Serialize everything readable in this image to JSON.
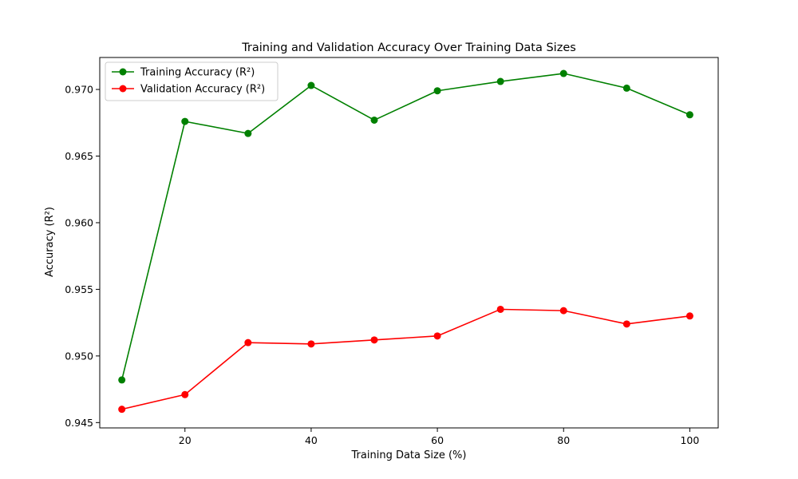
{
  "chart_data": {
    "type": "line",
    "title": "Training and Validation Accuracy Over Training Data Sizes",
    "xlabel": "Training Data Size (%)",
    "ylabel": "Accuracy (R²)",
    "x": [
      10,
      20,
      30,
      40,
      50,
      60,
      70,
      80,
      90,
      100
    ],
    "xlim": [
      6.5,
      104.5
    ],
    "ylim": [
      0.9446,
      0.9724
    ],
    "xticks": [
      20,
      40,
      60,
      80,
      100
    ],
    "yticks": [
      0.945,
      0.95,
      0.955,
      0.96,
      0.965,
      0.97
    ],
    "ytick_labels": [
      "0.945",
      "0.950",
      "0.955",
      "0.960",
      "0.965",
      "0.970"
    ],
    "grid": false,
    "legend_position": "top-left",
    "series": [
      {
        "name": "Training Accuracy (R²)",
        "color": "#008000",
        "marker": "circle",
        "values": [
          0.9482,
          0.9676,
          0.9667,
          0.9703,
          0.9677,
          0.9699,
          0.9706,
          0.9712,
          0.9701,
          0.9681
        ]
      },
      {
        "name": "Validation Accuracy (R²)",
        "color": "#ff0000",
        "marker": "circle",
        "values": [
          0.946,
          0.9471,
          0.951,
          0.9509,
          0.9512,
          0.9515,
          0.9535,
          0.9534,
          0.9524,
          0.953
        ]
      }
    ]
  }
}
